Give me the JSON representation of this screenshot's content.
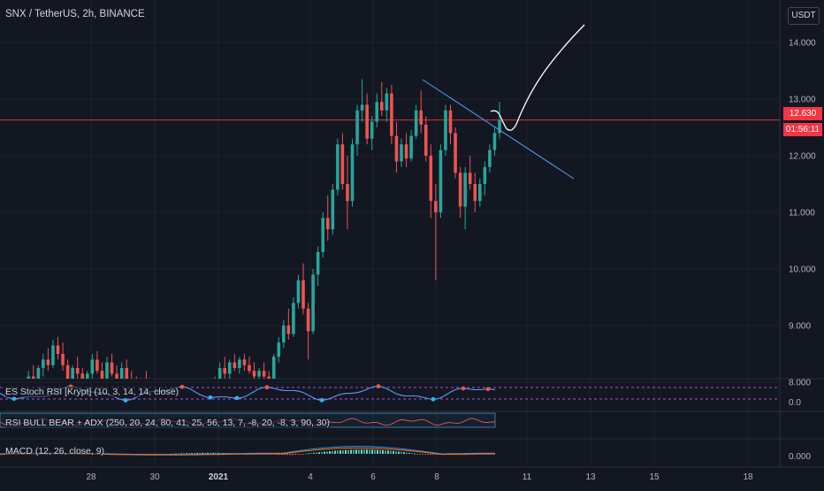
{
  "header": {
    "symbol": "SNX / TetherUS, 2h, BINANCE",
    "currency_button": "USDT"
  },
  "price_badge": {
    "price": "12.630",
    "countdown": "01:56:11"
  },
  "colors": {
    "background": "#131722",
    "up": "#26a69a",
    "down": "#ef5350",
    "grid": "#1e222d",
    "trendline": "#5b9cf6",
    "projection": "#ffffff",
    "price_line": "#f23645",
    "stoch_band": "#b34fc4",
    "rsi_line": "#ef5350",
    "macd_line": "#2196f3",
    "signal_line": "#ff6d00"
  },
  "indicators": {
    "stoch": {
      "label": "ES Stoch RSI [Krypt] (10, 3, 14, 14, close)",
      "axis_label": "0.0"
    },
    "rsi_adx": {
      "label": "RSI BULL BEAR + ADX (250, 20, 24, 80, 41, 25, 56, 13, 7, -8, 20, -8, 3, 90, 30)"
    },
    "macd": {
      "label": "MACD (12, 26, close, 9)",
      "axis_label": "0.000"
    }
  },
  "chart_data": {
    "type": "candlestick",
    "title": "SNX / TetherUS, 2h, BINANCE",
    "y_ticks": [
      "8.000",
      "9.000",
      "10.000",
      "11.000",
      "12.000",
      "13.000",
      "14.000"
    ],
    "x_ticks": [
      "28",
      "30",
      "2021",
      "4",
      "6",
      "8",
      "11",
      "13",
      "15",
      "18"
    ],
    "ylim": [
      7.6,
      14.6
    ],
    "last_price": 12.63,
    "candles": [
      {
        "o": 7.8,
        "h": 8.0,
        "l": 7.6,
        "c": 7.7
      },
      {
        "o": 7.7,
        "h": 7.9,
        "l": 7.55,
        "c": 7.85
      },
      {
        "o": 7.85,
        "h": 8.05,
        "l": 7.7,
        "c": 7.75
      },
      {
        "o": 7.75,
        "h": 8.0,
        "l": 7.6,
        "c": 7.95
      },
      {
        "o": 7.95,
        "h": 8.2,
        "l": 7.8,
        "c": 8.1
      },
      {
        "o": 8.1,
        "h": 8.3,
        "l": 7.95,
        "c": 8.0
      },
      {
        "o": 8.0,
        "h": 8.3,
        "l": 7.9,
        "c": 8.25
      },
      {
        "o": 8.25,
        "h": 8.5,
        "l": 8.1,
        "c": 8.4
      },
      {
        "o": 8.4,
        "h": 8.6,
        "l": 8.2,
        "c": 8.3
      },
      {
        "o": 8.3,
        "h": 8.75,
        "l": 8.25,
        "c": 8.65
      },
      {
        "o": 8.65,
        "h": 8.8,
        "l": 8.4,
        "c": 8.5
      },
      {
        "o": 8.5,
        "h": 8.7,
        "l": 8.2,
        "c": 8.3
      },
      {
        "o": 8.3,
        "h": 8.4,
        "l": 7.95,
        "c": 8.05
      },
      {
        "o": 8.05,
        "h": 8.3,
        "l": 7.9,
        "c": 8.25
      },
      {
        "o": 8.25,
        "h": 8.45,
        "l": 8.05,
        "c": 8.15
      },
      {
        "o": 8.15,
        "h": 8.25,
        "l": 7.8,
        "c": 7.9
      },
      {
        "o": 7.9,
        "h": 8.2,
        "l": 7.85,
        "c": 8.15
      },
      {
        "o": 8.15,
        "h": 8.5,
        "l": 8.05,
        "c": 8.4
      },
      {
        "o": 8.4,
        "h": 8.55,
        "l": 8.15,
        "c": 8.2
      },
      {
        "o": 8.2,
        "h": 8.35,
        "l": 7.95,
        "c": 8.05
      },
      {
        "o": 8.05,
        "h": 8.45,
        "l": 8.0,
        "c": 8.35
      },
      {
        "o": 8.35,
        "h": 8.5,
        "l": 8.1,
        "c": 8.15
      },
      {
        "o": 8.15,
        "h": 8.3,
        "l": 7.85,
        "c": 7.95
      },
      {
        "o": 7.95,
        "h": 8.35,
        "l": 7.9,
        "c": 8.25
      },
      {
        "o": 8.25,
        "h": 8.4,
        "l": 8.0,
        "c": 8.05
      },
      {
        "o": 8.05,
        "h": 8.2,
        "l": 7.8,
        "c": 7.9
      },
      {
        "o": 7.9,
        "h": 8.1,
        "l": 7.65,
        "c": 7.75
      },
      {
        "o": 7.75,
        "h": 8.05,
        "l": 7.7,
        "c": 8.0
      },
      {
        "o": 8.0,
        "h": 8.2,
        "l": 7.8,
        "c": 7.85
      },
      {
        "o": 7.85,
        "h": 7.95,
        "l": 7.55,
        "c": 7.65
      },
      {
        "o": 7.65,
        "h": 7.9,
        "l": 7.5,
        "c": 7.8
      },
      {
        "o": 7.8,
        "h": 7.95,
        "l": 7.55,
        "c": 7.6
      },
      {
        "o": 7.6,
        "h": 7.75,
        "l": 7.4,
        "c": 7.5
      },
      {
        "o": 7.5,
        "h": 7.75,
        "l": 7.4,
        "c": 7.7
      },
      {
        "o": 7.7,
        "h": 7.85,
        "l": 7.5,
        "c": 7.55
      },
      {
        "o": 7.55,
        "h": 7.7,
        "l": 7.35,
        "c": 7.45
      },
      {
        "o": 7.45,
        "h": 7.6,
        "l": 7.3,
        "c": 7.55
      },
      {
        "o": 7.55,
        "h": 7.7,
        "l": 7.4,
        "c": 7.5
      },
      {
        "o": 7.5,
        "h": 7.65,
        "l": 7.35,
        "c": 7.6
      },
      {
        "o": 7.6,
        "h": 7.8,
        "l": 7.5,
        "c": 7.75
      },
      {
        "o": 7.75,
        "h": 7.95,
        "l": 7.6,
        "c": 7.7
      },
      {
        "o": 7.7,
        "h": 7.9,
        "l": 7.55,
        "c": 7.85
      },
      {
        "o": 7.85,
        "h": 8.1,
        "l": 7.75,
        "c": 8.05
      },
      {
        "o": 8.05,
        "h": 8.35,
        "l": 7.95,
        "c": 8.25
      },
      {
        "o": 8.25,
        "h": 8.45,
        "l": 8.05,
        "c": 8.15
      },
      {
        "o": 8.15,
        "h": 8.4,
        "l": 8.05,
        "c": 8.35
      },
      {
        "o": 8.35,
        "h": 8.5,
        "l": 8.2,
        "c": 8.25
      },
      {
        "o": 8.25,
        "h": 8.45,
        "l": 8.15,
        "c": 8.4
      },
      {
        "o": 8.4,
        "h": 8.5,
        "l": 8.2,
        "c": 8.3
      },
      {
        "o": 8.3,
        "h": 8.45,
        "l": 8.15,
        "c": 8.2
      },
      {
        "o": 8.2,
        "h": 8.35,
        "l": 8.05,
        "c": 8.1
      },
      {
        "o": 8.1,
        "h": 8.25,
        "l": 8.0,
        "c": 8.2
      },
      {
        "o": 8.2,
        "h": 8.35,
        "l": 8.05,
        "c": 8.1
      },
      {
        "o": 8.1,
        "h": 8.2,
        "l": 8.0,
        "c": 8.05
      },
      {
        "o": 8.05,
        "h": 8.5,
        "l": 8.0,
        "c": 8.45
      },
      {
        "o": 8.45,
        "h": 8.8,
        "l": 8.35,
        "c": 8.7
      },
      {
        "o": 8.7,
        "h": 9.1,
        "l": 8.6,
        "c": 9.0
      },
      {
        "o": 9.0,
        "h": 9.3,
        "l": 8.75,
        "c": 8.85
      },
      {
        "o": 8.85,
        "h": 9.5,
        "l": 8.8,
        "c": 9.4
      },
      {
        "o": 9.4,
        "h": 9.9,
        "l": 9.3,
        "c": 9.8
      },
      {
        "o": 9.8,
        "h": 10.1,
        "l": 9.2,
        "c": 9.3
      },
      {
        "o": 9.3,
        "h": 9.4,
        "l": 8.4,
        "c": 8.9
      },
      {
        "o": 8.9,
        "h": 10.0,
        "l": 8.85,
        "c": 9.9
      },
      {
        "o": 9.9,
        "h": 10.4,
        "l": 9.7,
        "c": 10.3
      },
      {
        "o": 10.3,
        "h": 11.0,
        "l": 10.2,
        "c": 10.9
      },
      {
        "o": 10.9,
        "h": 11.3,
        "l": 10.5,
        "c": 10.7
      },
      {
        "o": 10.7,
        "h": 11.5,
        "l": 10.6,
        "c": 11.4
      },
      {
        "o": 11.4,
        "h": 12.3,
        "l": 11.3,
        "c": 12.2
      },
      {
        "o": 12.2,
        "h": 12.4,
        "l": 11.4,
        "c": 11.5
      },
      {
        "o": 11.5,
        "h": 12.0,
        "l": 10.7,
        "c": 11.2
      },
      {
        "o": 11.2,
        "h": 12.3,
        "l": 11.1,
        "c": 12.2
      },
      {
        "o": 12.2,
        "h": 12.9,
        "l": 12.0,
        "c": 12.8
      },
      {
        "o": 12.8,
        "h": 13.35,
        "l": 12.6,
        "c": 12.9
      },
      {
        "o": 12.9,
        "h": 13.1,
        "l": 12.2,
        "c": 12.3
      },
      {
        "o": 12.3,
        "h": 12.7,
        "l": 12.1,
        "c": 12.6
      },
      {
        "o": 12.6,
        "h": 13.1,
        "l": 12.5,
        "c": 12.95
      },
      {
        "o": 12.95,
        "h": 13.3,
        "l": 12.7,
        "c": 12.8
      },
      {
        "o": 12.8,
        "h": 13.2,
        "l": 12.6,
        "c": 13.1
      },
      {
        "o": 13.1,
        "h": 13.25,
        "l": 12.2,
        "c": 12.35
      },
      {
        "o": 12.35,
        "h": 12.6,
        "l": 11.7,
        "c": 11.9
      },
      {
        "o": 11.9,
        "h": 12.3,
        "l": 11.8,
        "c": 12.2
      },
      {
        "o": 12.2,
        "h": 12.4,
        "l": 11.8,
        "c": 11.95
      },
      {
        "o": 11.95,
        "h": 12.45,
        "l": 11.9,
        "c": 12.35
      },
      {
        "o": 12.35,
        "h": 12.9,
        "l": 12.3,
        "c": 12.8
      },
      {
        "o": 12.8,
        "h": 13.15,
        "l": 12.4,
        "c": 12.55
      },
      {
        "o": 12.55,
        "h": 12.7,
        "l": 11.9,
        "c": 12.0
      },
      {
        "o": 12.0,
        "h": 12.2,
        "l": 10.9,
        "c": 11.2
      },
      {
        "o": 11.2,
        "h": 11.5,
        "l": 9.8,
        "c": 11.0
      },
      {
        "o": 11.0,
        "h": 12.2,
        "l": 10.9,
        "c": 12.1
      },
      {
        "o": 12.1,
        "h": 12.9,
        "l": 12.0,
        "c": 12.8
      },
      {
        "o": 12.8,
        "h": 12.9,
        "l": 12.2,
        "c": 12.4
      },
      {
        "o": 12.4,
        "h": 12.5,
        "l": 11.6,
        "c": 11.7
      },
      {
        "o": 11.7,
        "h": 11.8,
        "l": 10.9,
        "c": 11.1
      },
      {
        "o": 11.1,
        "h": 11.8,
        "l": 10.7,
        "c": 11.7
      },
      {
        "o": 11.7,
        "h": 12.0,
        "l": 11.4,
        "c": 11.5
      },
      {
        "o": 11.5,
        "h": 11.7,
        "l": 11.0,
        "c": 11.2
      },
      {
        "o": 11.2,
        "h": 11.6,
        "l": 11.1,
        "c": 11.5
      },
      {
        "o": 11.5,
        "h": 11.9,
        "l": 11.3,
        "c": 11.8
      },
      {
        "o": 11.8,
        "h": 12.2,
        "l": 11.7,
        "c": 12.1
      },
      {
        "o": 12.1,
        "h": 12.5,
        "l": 12.0,
        "c": 12.4
      },
      {
        "o": 12.4,
        "h": 12.95,
        "l": 12.3,
        "c": 12.63
      }
    ]
  }
}
